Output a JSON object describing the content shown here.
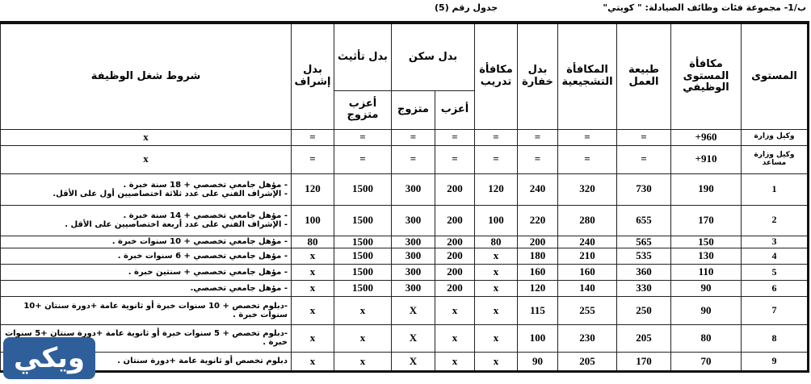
{
  "caption": {
    "section": "ب/1- مجموعة فئات وظائف الصيادلة: \" كويتي\"",
    "table_no": "جدول رقم (5)"
  },
  "headers": {
    "level": "المستوى",
    "grade_reward": "مكافأة المستوى الوظيفي",
    "work_nature": "طبيعة العمل",
    "incentive": "المكافأة التشجيعية",
    "guard": "بدل خفارة",
    "training": "مكافأة تدريب",
    "housing": "بدل سكن",
    "housing_single": "أعزب",
    "housing_married": "متزوج",
    "furniture": "بدل تأثيث",
    "furniture_sub": "أعزب متزوج",
    "supervision": "بدل إشراف",
    "conditions": "شروط شغل الوظيفة"
  },
  "rows": [
    {
      "level": "وكيل وزارة",
      "grade_reward": "960+",
      "work_nature": "=",
      "incentive": "=",
      "guard": "=",
      "training": "=",
      "single": "=",
      "married": "=",
      "furniture": "=",
      "supervision": "=",
      "conditions": "x"
    },
    {
      "level": "وكيل وزارة مساعد",
      "grade_reward": "910+",
      "work_nature": "=",
      "incentive": "=",
      "guard": "=",
      "training": "=",
      "single": "=",
      "married": "=",
      "furniture": "=",
      "supervision": "=",
      "conditions": "x"
    },
    {
      "level": "1",
      "grade_reward": "190",
      "work_nature": "730",
      "incentive": "320",
      "guard": "240",
      "training": "120",
      "single": "200",
      "married": "300",
      "furniture": "1500",
      "supervision": "120",
      "conditions": "- مؤهل جامعي تخصصي + 18 سنة خبرة .\n- الإشراف الفني على عدد ثلاثة اختصاصيين أول على الأقل."
    },
    {
      "level": "2",
      "grade_reward": "170",
      "work_nature": "655",
      "incentive": "280",
      "guard": "220",
      "training": "100",
      "single": "200",
      "married": "300",
      "furniture": "1500",
      "supervision": "100",
      "conditions": "- مؤهل جامعي تخصصي + 14 سنة خبرة .\n- الإشراف الفني على عدد أربعة اختصاصيين على الأقل ."
    },
    {
      "level": "3",
      "grade_reward": "150",
      "work_nature": "565",
      "incentive": "240",
      "guard": "200",
      "training": "80",
      "single": "200",
      "married": "300",
      "furniture": "1500",
      "supervision": "80",
      "conditions": "- مؤهل جامعي تخصصي + 10 سنوات خبرة ."
    },
    {
      "level": "4",
      "grade_reward": "130",
      "work_nature": "535",
      "incentive": "210",
      "guard": "180",
      "training": "x",
      "single": "200",
      "married": "300",
      "furniture": "1500",
      "supervision": "x",
      "conditions": "- مؤهل جامعي تخصصي + 6 سنوات خبرة ."
    },
    {
      "level": "5",
      "grade_reward": "110",
      "work_nature": "360",
      "incentive": "160",
      "guard": "160",
      "training": "x",
      "single": "200",
      "married": "300",
      "furniture": "1500",
      "supervision": "x",
      "conditions": "- مؤهل جامعي تخصصي + سنتين خبرة ."
    },
    {
      "level": "6",
      "grade_reward": "90",
      "work_nature": "330",
      "incentive": "140",
      "guard": "120",
      "training": "x",
      "single": "200",
      "married": "300",
      "furniture": "1500",
      "supervision": "x",
      "conditions": "- مؤهل جامعي تخصصي."
    },
    {
      "level": "7",
      "grade_reward": "90",
      "work_nature": "250",
      "incentive": "255",
      "guard": "115",
      "training": "x",
      "single": "x",
      "married": "X",
      "furniture": "x",
      "supervision": "x",
      "conditions": "-دبلوم تخصص + 10 سنوات خبرة أو ثانوية عامة +دورة سنتان +10 سنوات خبرة ."
    },
    {
      "level": "8",
      "grade_reward": "80",
      "work_nature": "205",
      "incentive": "230",
      "guard": "100",
      "training": "x",
      "single": "x",
      "married": "X",
      "furniture": "x",
      "supervision": "x",
      "conditions": "-دبلوم تخصص + 5 سنوات خبرة أو ثانوية عامة +دورة سنتان +5 سنوات خبرة ."
    },
    {
      "level": "9",
      "grade_reward": "70",
      "work_nature": "170",
      "incentive": "205",
      "guard": "90",
      "training": "x",
      "single": "x",
      "married": "X",
      "furniture": "x",
      "supervision": "x",
      "conditions": "دبلوم تخصص أو ثانوية عامة +دورة سنتان ."
    }
  ],
  "logo": {
    "text": "ويكي",
    "color": "#2e5f9a"
  }
}
